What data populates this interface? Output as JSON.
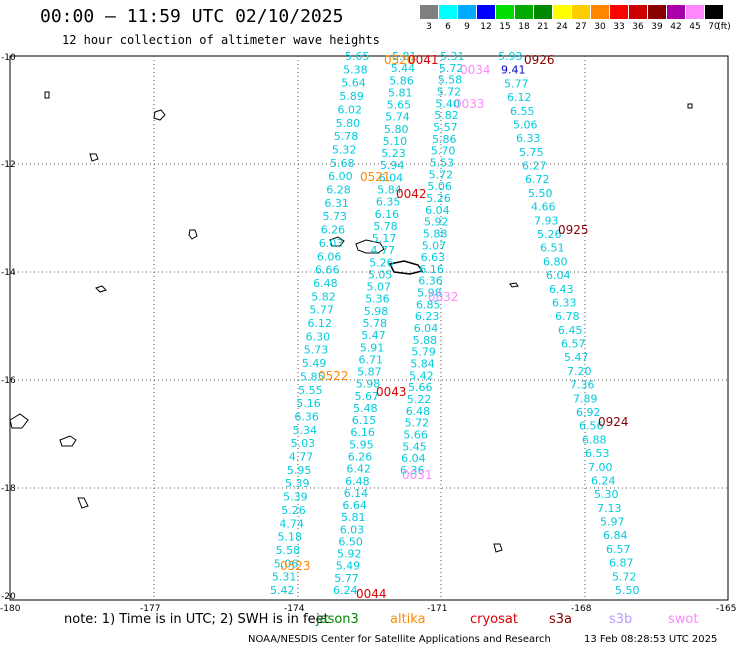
{
  "header": {
    "title": "00:00 – 11:59 UTC 02/10/2025",
    "subtitle": "12 hour collection of altimeter wave heights"
  },
  "legend": {
    "unit": "(ft)",
    "items": [
      {
        "label": "3",
        "color": "#7f7f7f"
      },
      {
        "label": "6",
        "color": "#00ffff"
      },
      {
        "label": "9",
        "color": "#00aaff"
      },
      {
        "label": "12",
        "color": "#0000ff"
      },
      {
        "label": "15",
        "color": "#00dd00"
      },
      {
        "label": "18",
        "color": "#00aa00"
      },
      {
        "label": "21",
        "color": "#008800"
      },
      {
        "label": "24",
        "color": "#ffff00"
      },
      {
        "label": "27",
        "color": "#ffcc00"
      },
      {
        "label": "30",
        "color": "#ff8800"
      },
      {
        "label": "33",
        "color": "#ff0000"
      },
      {
        "label": "36",
        "color": "#cc0000"
      },
      {
        "label": "39",
        "color": "#880000"
      },
      {
        "label": "42",
        "color": "#aa00aa"
      },
      {
        "label": "45",
        "color": "#ff88ff"
      },
      {
        "label": "70",
        "color": "#000000"
      }
    ]
  },
  "axes": {
    "lat_labels": [
      "-10",
      "-12",
      "-14",
      "-16",
      "-18",
      "-20"
    ],
    "lon_labels": [
      "-180",
      "-177",
      "-174",
      "-171",
      "-168",
      "-165"
    ]
  },
  "colors": {
    "wave_cyan": "#00ccdd",
    "wave_blue": "#0000cc",
    "time_orange": "#ff8800",
    "time_red": "#dd0000",
    "time_darkred": "#880000",
    "time_pink": "#ff88ff",
    "grid": "#555555"
  },
  "tracks": [
    {
      "name": "track-1",
      "x0": 270,
      "y0": 590,
      "x1": 345,
      "y1": 56
    },
    {
      "name": "track-2",
      "x0": 333,
      "y0": 590,
      "x1": 392,
      "y1": 56
    },
    {
      "name": "track-3",
      "x0": 400,
      "y0": 470,
      "x1": 440,
      "y1": 56
    },
    {
      "name": "track-4",
      "x0": 498,
      "y0": 56,
      "x1": 615,
      "y1": 590
    }
  ],
  "wave_labels": [
    {
      "t": "5.65",
      "c": "cyan"
    },
    {
      "t": "5.38",
      "c": "cyan"
    },
    {
      "t": "5.64",
      "c": "cyan"
    },
    {
      "t": "5.89",
      "c": "cyan"
    },
    {
      "t": "6.02",
      "c": "cyan"
    },
    {
      "t": "5.80",
      "c": "cyan"
    },
    {
      "t": "5.78",
      "c": "cyan"
    },
    {
      "t": "5.32",
      "c": "cyan"
    },
    {
      "t": "5.68",
      "c": "cyan"
    },
    {
      "t": "6.00",
      "c": "cyan"
    },
    {
      "t": "6.28",
      "c": "cyan"
    },
    {
      "t": "6.31",
      "c": "cyan"
    },
    {
      "t": "5.73",
      "c": "cyan"
    },
    {
      "t": "6.26",
      "c": "cyan"
    },
    {
      "t": "6.03",
      "c": "cyan"
    },
    {
      "t": "6.06",
      "c": "cyan"
    },
    {
      "t": "6.66",
      "c": "cyan"
    },
    {
      "t": "6.48",
      "c": "cyan"
    },
    {
      "t": "5.82",
      "c": "cyan"
    },
    {
      "t": "5.77",
      "c": "cyan"
    },
    {
      "t": "6.12",
      "c": "cyan"
    },
    {
      "t": "6.30",
      "c": "cyan"
    },
    {
      "t": "5.73",
      "c": "cyan"
    },
    {
      "t": "5.49",
      "c": "cyan"
    },
    {
      "t": "5.85",
      "c": "cyan"
    },
    {
      "t": "5.55",
      "c": "cyan"
    },
    {
      "t": "5.16",
      "c": "cyan"
    },
    {
      "t": "6.36",
      "c": "cyan"
    },
    {
      "t": "5.34",
      "c": "cyan"
    },
    {
      "t": "5.03",
      "c": "cyan"
    },
    {
      "t": "4.77",
      "c": "cyan"
    },
    {
      "t": "5.95",
      "c": "cyan"
    },
    {
      "t": "5.39",
      "c": "cyan"
    },
    {
      "t": "5.39",
      "c": "cyan"
    },
    {
      "t": "5.26",
      "c": "cyan"
    },
    {
      "t": "4.74",
      "c": "cyan"
    },
    {
      "t": "5.18",
      "c": "cyan"
    },
    {
      "t": "5.58",
      "c": "cyan"
    },
    {
      "t": "5.06",
      "c": "cyan"
    },
    {
      "t": "5.31",
      "c": "cyan"
    },
    {
      "t": "5.42",
      "c": "cyan"
    },
    {
      "t": "5.81",
      "c": "cyan"
    },
    {
      "t": "5.44",
      "c": "cyan"
    },
    {
      "t": "5.86",
      "c": "cyan"
    },
    {
      "t": "5.81",
      "c": "cyan"
    },
    {
      "t": "5.65",
      "c": "cyan"
    },
    {
      "t": "5.74",
      "c": "cyan"
    },
    {
      "t": "5.80",
      "c": "cyan"
    },
    {
      "t": "5.10",
      "c": "cyan"
    },
    {
      "t": "5.23",
      "c": "cyan"
    },
    {
      "t": "5.94",
      "c": "cyan"
    },
    {
      "t": "6.04",
      "c": "cyan"
    },
    {
      "t": "5.84",
      "c": "cyan"
    },
    {
      "t": "6.35",
      "c": "cyan"
    },
    {
      "t": "6.16",
      "c": "cyan"
    },
    {
      "t": "5.78",
      "c": "cyan"
    },
    {
      "t": "5.17",
      "c": "cyan"
    },
    {
      "t": "4.77",
      "c": "cyan"
    },
    {
      "t": "5.26",
      "c": "cyan"
    },
    {
      "t": "5.05",
      "c": "cyan"
    },
    {
      "t": "5.07",
      "c": "cyan"
    },
    {
      "t": "5.36",
      "c": "cyan"
    },
    {
      "t": "5.98",
      "c": "cyan"
    },
    {
      "t": "5.78",
      "c": "cyan"
    },
    {
      "t": "5.47",
      "c": "cyan"
    },
    {
      "t": "5.91",
      "c": "cyan"
    },
    {
      "t": "6.71",
      "c": "cyan"
    },
    {
      "t": "5.87",
      "c": "cyan"
    },
    {
      "t": "5.98",
      "c": "cyan"
    },
    {
      "t": "5.67",
      "c": "cyan"
    },
    {
      "t": "5.48",
      "c": "cyan"
    },
    {
      "t": "6.15",
      "c": "cyan"
    },
    {
      "t": "6.16",
      "c": "cyan"
    },
    {
      "t": "5.95",
      "c": "cyan"
    },
    {
      "t": "6.26",
      "c": "cyan"
    },
    {
      "t": "6.42",
      "c": "cyan"
    },
    {
      "t": "6.48",
      "c": "cyan"
    },
    {
      "t": "6.14",
      "c": "cyan"
    },
    {
      "t": "6.64",
      "c": "cyan"
    },
    {
      "t": "5.81",
      "c": "cyan"
    },
    {
      "t": "6.03",
      "c": "cyan"
    },
    {
      "t": "6.50",
      "c": "cyan"
    },
    {
      "t": "5.92",
      "c": "cyan"
    },
    {
      "t": "5.49",
      "c": "cyan"
    },
    {
      "t": "5.77",
      "c": "cyan"
    },
    {
      "t": "6.24",
      "c": "cyan"
    },
    {
      "t": "5.31",
      "c": "cyan"
    },
    {
      "t": "5.72",
      "c": "cyan"
    },
    {
      "t": "5.58",
      "c": "cyan"
    },
    {
      "t": "5.72",
      "c": "cyan"
    },
    {
      "t": "5.40",
      "c": "cyan"
    },
    {
      "t": "5.82",
      "c": "cyan"
    },
    {
      "t": "5.57",
      "c": "cyan"
    },
    {
      "t": "5.86",
      "c": "cyan"
    },
    {
      "t": "5.70",
      "c": "cyan"
    },
    {
      "t": "5.53",
      "c": "cyan"
    },
    {
      "t": "5.72",
      "c": "cyan"
    },
    {
      "t": "5.06",
      "c": "cyan"
    },
    {
      "t": "5.26",
      "c": "cyan"
    },
    {
      "t": "6.04",
      "c": "cyan"
    },
    {
      "t": "5.92",
      "c": "cyan"
    },
    {
      "t": "5.88",
      "c": "cyan"
    },
    {
      "t": "5.07",
      "c": "cyan"
    },
    {
      "t": "6.63",
      "c": "cyan"
    },
    {
      "t": "6.16",
      "c": "cyan"
    },
    {
      "t": "6.36",
      "c": "cyan"
    },
    {
      "t": "5.98",
      "c": "cyan"
    },
    {
      "t": "6.85",
      "c": "cyan"
    },
    {
      "t": "6.23",
      "c": "cyan"
    },
    {
      "t": "6.04",
      "c": "cyan"
    },
    {
      "t": "5.88",
      "c": "cyan"
    },
    {
      "t": "5.79",
      "c": "cyan"
    },
    {
      "t": "5.84",
      "c": "cyan"
    },
    {
      "t": "5.42",
      "c": "cyan"
    },
    {
      "t": "5.66",
      "c": "cyan"
    },
    {
      "t": "5.22",
      "c": "cyan"
    },
    {
      "t": "6.48",
      "c": "cyan"
    },
    {
      "t": "5.72",
      "c": "cyan"
    },
    {
      "t": "5.66",
      "c": "cyan"
    },
    {
      "t": "5.45",
      "c": "cyan"
    },
    {
      "t": "6.04",
      "c": "cyan"
    },
    {
      "t": "6.36",
      "c": "cyan"
    },
    {
      "t": "5.93",
      "c": "cyan"
    },
    {
      "t": "9.41",
      "c": "blue"
    },
    {
      "t": "5.77",
      "c": "cyan"
    },
    {
      "t": "6.12",
      "c": "cyan"
    },
    {
      "t": "6.55",
      "c": "cyan"
    },
    {
      "t": "5.06",
      "c": "cyan"
    },
    {
      "t": "6.33",
      "c": "cyan"
    },
    {
      "t": "5.75",
      "c": "cyan"
    },
    {
      "t": "6.27",
      "c": "cyan"
    },
    {
      "t": "6.72",
      "c": "cyan"
    },
    {
      "t": "5.50",
      "c": "cyan"
    },
    {
      "t": "4.66",
      "c": "cyan"
    },
    {
      "t": "7.93",
      "c": "cyan"
    },
    {
      "t": "5.26",
      "c": "cyan"
    },
    {
      "t": "6.51",
      "c": "cyan"
    },
    {
      "t": "6.80",
      "c": "cyan"
    },
    {
      "t": "6.04",
      "c": "cyan"
    },
    {
      "t": "6.43",
      "c": "cyan"
    },
    {
      "t": "6.33",
      "c": "cyan"
    },
    {
      "t": "6.78",
      "c": "cyan"
    },
    {
      "t": "6.45",
      "c": "cyan"
    },
    {
      "t": "6.57",
      "c": "cyan"
    },
    {
      "t": "5.47",
      "c": "cyan"
    },
    {
      "t": "7.20",
      "c": "cyan"
    },
    {
      "t": "7.36",
      "c": "cyan"
    },
    {
      "t": "7.89",
      "c": "cyan"
    },
    {
      "t": "6.92",
      "c": "cyan"
    },
    {
      "t": "6.56",
      "c": "cyan"
    },
    {
      "t": "6.88",
      "c": "cyan"
    },
    {
      "t": "6.53",
      "c": "cyan"
    },
    {
      "t": "7.00",
      "c": "cyan"
    },
    {
      "t": "6.24",
      "c": "cyan"
    },
    {
      "t": "5.30",
      "c": "cyan"
    },
    {
      "t": "7.13",
      "c": "cyan"
    },
    {
      "t": "5.97",
      "c": "cyan"
    },
    {
      "t": "6.84",
      "c": "cyan"
    },
    {
      "t": "6.57",
      "c": "cyan"
    },
    {
      "t": "6.87",
      "c": "cyan"
    },
    {
      "t": "5.72",
      "c": "cyan"
    },
    {
      "t": "5.50",
      "c": "cyan"
    }
  ],
  "time_labels": [
    {
      "t": "0520",
      "c": "orange"
    },
    {
      "t": "0041",
      "c": "red"
    },
    {
      "t": "0034",
      "c": "pink"
    },
    {
      "t": "0926",
      "c": "darkred"
    },
    {
      "t": "0033",
      "c": "pink"
    },
    {
      "t": "0521",
      "c": "orange"
    },
    {
      "t": "0042",
      "c": "red"
    },
    {
      "t": "0925",
      "c": "darkred"
    },
    {
      "t": "0032",
      "c": "pink"
    },
    {
      "t": "0522",
      "c": "orange"
    },
    {
      "t": "0043",
      "c": "red"
    },
    {
      "t": "0924",
      "c": "darkred"
    },
    {
      "t": "0031",
      "c": "pink"
    },
    {
      "t": "0523",
      "c": "orange"
    },
    {
      "t": "0044",
      "c": "red"
    }
  ],
  "note": "note: 1) Time is in UTC; 2) SWH is in feet",
  "satellites": [
    {
      "name": "jason3",
      "color": "#008800"
    },
    {
      "name": "altika",
      "color": "#ff8800"
    },
    {
      "name": "cryosat",
      "color": "#dd0000"
    },
    {
      "name": "s3a",
      "color": "#880000"
    },
    {
      "name": "s3b",
      "color": "#bb99ff"
    },
    {
      "name": "swot",
      "color": "#ff88ff"
    }
  ],
  "footer": {
    "credit": "NOAA/NESDIS Center for Satellite Applications and Research",
    "timestamp": "13 Feb 08:28:53 UTC 2025"
  }
}
